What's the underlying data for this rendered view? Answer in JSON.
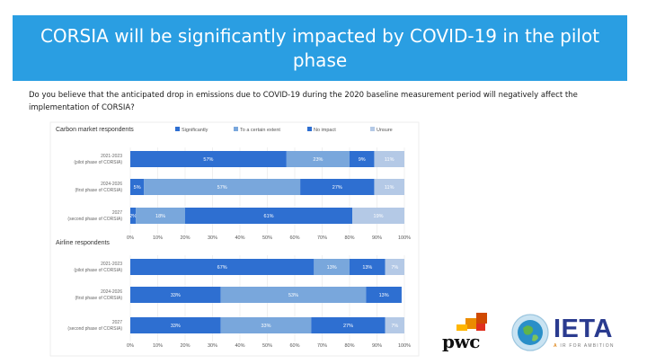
{
  "slide": {
    "title": "CORSIA will be significantly impacted by COVID-19 in the pilot phase",
    "question": "Do you believe that the anticipated drop in emissions due to COVID-19 during the 2020 baseline measurement period will negatively affect the implementation of CORSIA?"
  },
  "logos": {
    "pwc_text": "pwc",
    "ieta_text": "IETA",
    "ieta_tagline_prefix": "A",
    "ieta_tagline": "IR FOR AMBITION"
  },
  "colors": {
    "banner": "#2a9ee2",
    "significantly": "#2e6fd1",
    "to_a_certain_extent": "#79a7dc",
    "no_impact": "#2e6fd1",
    "unsure": "#b4c9e6"
  },
  "chart_data": [
    {
      "type": "bar",
      "orientation": "horizontal",
      "stacked": true,
      "title": "Carbon market respondents",
      "legend": [
        "Significantly",
        "To a certain extent",
        "No impact",
        "Unsure"
      ],
      "categories": [
        [
          "2021-2023",
          "(pilot phase of CORSIA)"
        ],
        [
          "2024-2026",
          "(first phase of CORSIA)"
        ],
        [
          "2027",
          "(second phase of CORSIA)"
        ]
      ],
      "series": [
        {
          "name": "Significantly",
          "values": [
            57,
            5,
            2
          ],
          "labels": [
            "57%",
            "5%",
            "2%"
          ]
        },
        {
          "name": "To a certain extent",
          "values": [
            23,
            57,
            18
          ],
          "labels": [
            "23%",
            "57%",
            "18%"
          ]
        },
        {
          "name": "No impact",
          "values": [
            9,
            27,
            61
          ],
          "labels": [
            "9%",
            "27%",
            "61%"
          ]
        },
        {
          "name": "Unsure",
          "values": [
            11,
            11,
            19
          ],
          "labels": [
            "11%",
            "11%",
            "19%"
          ]
        }
      ],
      "xlim": [
        0,
        100
      ],
      "xticks": [
        "0%",
        "10%",
        "20%",
        "30%",
        "40%",
        "50%",
        "60%",
        "70%",
        "80%",
        "90%",
        "100%"
      ]
    },
    {
      "type": "bar",
      "orientation": "horizontal",
      "stacked": true,
      "title": "Airline respondents",
      "categories": [
        [
          "2021-2023",
          "(pilot phase of CORSIA)"
        ],
        [
          "2024-2026",
          "(first phase of CORSIA)"
        ],
        [
          "2027",
          "(second phase of CORSIA)"
        ]
      ],
      "series": [
        {
          "name": "Significantly",
          "values": [
            67,
            33,
            33
          ],
          "labels": [
            "67%",
            "33%",
            "33%"
          ]
        },
        {
          "name": "To a certain extent",
          "values": [
            13,
            53,
            33
          ],
          "labels": [
            "13%",
            "53%",
            "33%"
          ]
        },
        {
          "name": "No impact",
          "values": [
            13,
            13,
            27
          ],
          "labels": [
            "13%",
            "13%",
            "27%"
          ]
        },
        {
          "name": "Unsure",
          "values": [
            7,
            0,
            7
          ],
          "labels": [
            "7%",
            "",
            "7%"
          ]
        }
      ],
      "xlim": [
        0,
        100
      ],
      "xticks": [
        "0%",
        "10%",
        "20%",
        "30%",
        "40%",
        "50%",
        "60%",
        "70%",
        "80%",
        "90%",
        "100%"
      ]
    }
  ]
}
